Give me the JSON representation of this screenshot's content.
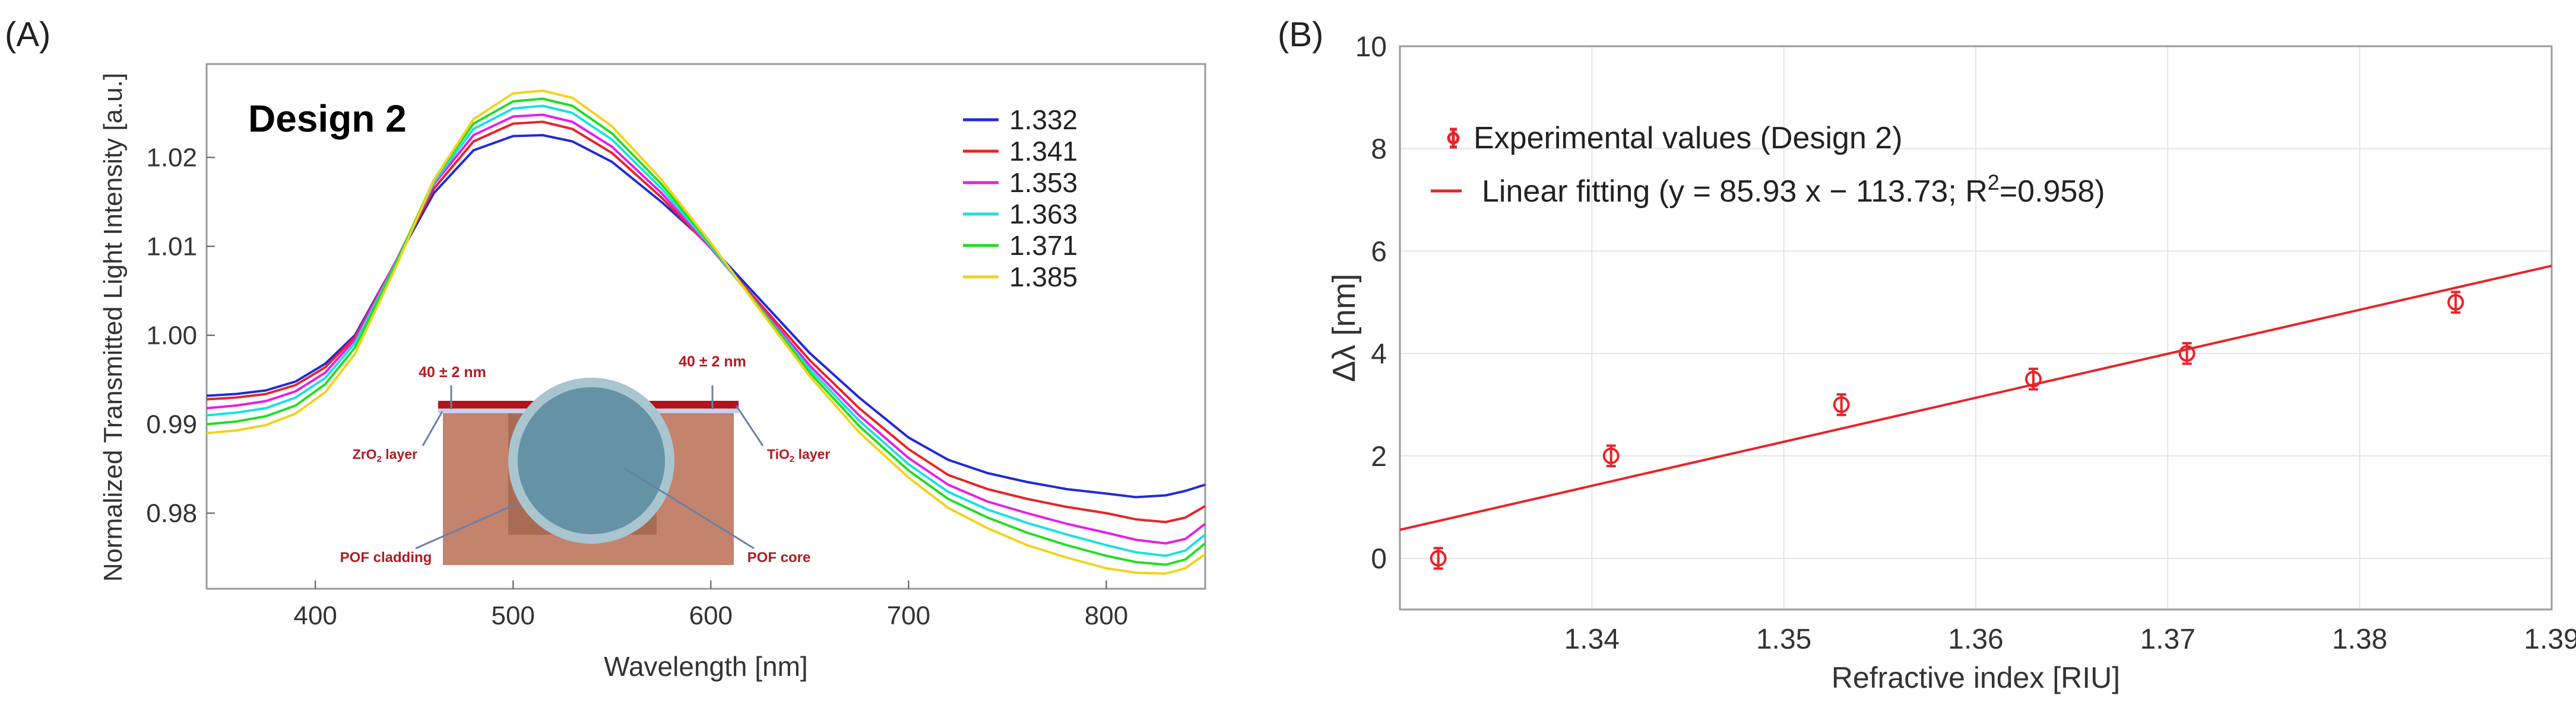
{
  "chart_data": [
    {
      "panel_label": "(A)",
      "type": "line",
      "title": "Design 2",
      "xlabel": "Wavelength [nm]",
      "ylabel": "Normalized Transmitted Light Intensity [a.u.]",
      "xlim": [
        345,
        850
      ],
      "ylim": [
        0.9715,
        1.0305
      ],
      "xticks": [
        400,
        500,
        600,
        700,
        800
      ],
      "yticks": [
        0.98,
        0.99,
        1.0,
        1.01,
        1.02
      ],
      "ytick_labels": [
        "0.98",
        "0.99",
        "1.00",
        "1.01",
        "1.02"
      ],
      "legend_position": "top-right",
      "series": [
        {
          "name": "1.332",
          "color": "#1f2bd6",
          "x": [
            345,
            360,
            375,
            390,
            405,
            420,
            440,
            460,
            480,
            500,
            515,
            530,
            550,
            575,
            600,
            625,
            650,
            675,
            700,
            720,
            740,
            760,
            780,
            800,
            815,
            830,
            840,
            850
          ],
          "y": [
            0.9932,
            0.9934,
            0.9938,
            0.9948,
            0.9968,
            1.0,
            1.008,
            1.016,
            1.0208,
            1.0224,
            1.0225,
            1.0218,
            1.0195,
            1.015,
            1.01,
            1.004,
            0.998,
            0.993,
            0.9885,
            0.986,
            0.9845,
            0.9835,
            0.9827,
            0.9822,
            0.9818,
            0.982,
            0.9825,
            0.9832
          ]
        },
        {
          "name": "1.341",
          "color": "#e8242a",
          "x": [
            345,
            360,
            375,
            390,
            405,
            420,
            440,
            460,
            480,
            500,
            515,
            530,
            550,
            575,
            600,
            625,
            650,
            675,
            700,
            720,
            740,
            760,
            780,
            800,
            815,
            830,
            840,
            850
          ],
          "y": [
            0.9928,
            0.993,
            0.9934,
            0.9944,
            0.9964,
            0.9998,
            1.008,
            1.0165,
            1.0218,
            1.0238,
            1.024,
            1.0232,
            1.0205,
            1.0155,
            1.0098,
            1.0035,
            0.9972,
            0.9918,
            0.9872,
            0.9843,
            0.9827,
            0.9816,
            0.9807,
            0.98,
            0.9793,
            0.979,
            0.9795,
            0.9808
          ]
        },
        {
          "name": "1.353",
          "color": "#e81ee8",
          "x": [
            345,
            360,
            375,
            390,
            405,
            420,
            440,
            460,
            480,
            500,
            515,
            530,
            550,
            575,
            600,
            625,
            650,
            675,
            700,
            720,
            740,
            760,
            780,
            800,
            815,
            830,
            840,
            850
          ],
          "y": [
            0.9918,
            0.9921,
            0.9926,
            0.9937,
            0.9958,
            0.9995,
            1.008,
            1.017,
            1.0225,
            1.0246,
            1.0248,
            1.024,
            1.0212,
            1.016,
            1.0098,
            1.0032,
            0.9966,
            0.991,
            0.9862,
            0.9832,
            0.9813,
            0.98,
            0.9788,
            0.9778,
            0.977,
            0.9766,
            0.9771,
            0.9788
          ]
        },
        {
          "name": "1.363",
          "color": "#19e0e0",
          "x": [
            345,
            360,
            375,
            390,
            405,
            420,
            440,
            460,
            480,
            500,
            515,
            530,
            550,
            575,
            600,
            625,
            650,
            675,
            700,
            720,
            740,
            760,
            780,
            800,
            815,
            830,
            840,
            850
          ],
          "y": [
            0.991,
            0.9913,
            0.9918,
            0.993,
            0.9952,
            0.9991,
            1.0078,
            1.0172,
            1.0232,
            1.0255,
            1.0258,
            1.025,
            1.022,
            1.0165,
            1.01,
            1.003,
            0.9962,
            0.9904,
            0.9855,
            0.9824,
            0.9804,
            0.9789,
            0.9776,
            0.9764,
            0.9756,
            0.9752,
            0.9758,
            0.9776
          ]
        },
        {
          "name": "1.371",
          "color": "#22dd22",
          "x": [
            345,
            360,
            375,
            390,
            405,
            420,
            440,
            460,
            480,
            500,
            515,
            530,
            550,
            575,
            600,
            625,
            650,
            675,
            700,
            720,
            740,
            760,
            780,
            800,
            815,
            830,
            840,
            850
          ],
          "y": [
            0.99,
            0.9903,
            0.9909,
            0.9921,
            0.9945,
            0.9986,
            1.0077,
            1.0175,
            1.0238,
            1.0263,
            1.0266,
            1.0258,
            1.0227,
            1.017,
            1.0102,
            1.003,
            0.9958,
            0.9898,
            0.9848,
            0.9816,
            0.9795,
            0.9778,
            0.9764,
            0.9752,
            0.9745,
            0.9742,
            0.9748,
            0.9766
          ]
        },
        {
          "name": "1.385",
          "color": "#f2d21c",
          "x": [
            345,
            360,
            375,
            390,
            405,
            420,
            440,
            460,
            480,
            500,
            515,
            530,
            550,
            575,
            600,
            625,
            650,
            675,
            700,
            720,
            740,
            760,
            780,
            800,
            815,
            830,
            840,
            850
          ],
          "y": [
            0.989,
            0.9893,
            0.9899,
            0.9912,
            0.9936,
            0.9979,
            1.0073,
            1.0175,
            1.0243,
            1.0272,
            1.0275,
            1.0267,
            1.0235,
            1.0175,
            1.0104,
            1.0028,
            0.9954,
            0.9891,
            0.984,
            0.9806,
            0.9783,
            0.9764,
            0.975,
            0.9738,
            0.9733,
            0.9732,
            0.9738,
            0.9754
          ]
        }
      ],
      "inset": {
        "top_layer_left_label": "40 ± 2 nm",
        "top_layer_right_label": "40 ± 2 nm",
        "zro2_label": "ZrO",
        "zro2_suffix": " layer",
        "tio2_label": "TiO",
        "tio2_suffix": " layer",
        "subscript": "2",
        "cladding_label": "POF cladding",
        "core_label": "POF core"
      }
    },
    {
      "panel_label": "(B)",
      "type": "scatter",
      "xlabel": "Refractive index [RIU]",
      "ylabel": "Δλ [nm]",
      "xlim": [
        1.33,
        1.39
      ],
      "ylim": [
        -1,
        10
      ],
      "xticks": [
        1.34,
        1.35,
        1.36,
        1.37,
        1.38,
        1.39
      ],
      "xtick_labels": [
        "1.34",
        "1.35",
        "1.36",
        "1.37",
        "1.38",
        "1.39"
      ],
      "yticks": [
        0,
        2,
        4,
        6,
        8,
        10
      ],
      "ytick_labels": [
        "0",
        "2",
        "4",
        "6",
        "8",
        "10"
      ],
      "grid": true,
      "legend_position": "top-left",
      "marker_color": "#e8242a",
      "points": {
        "name": "Experimental values (Design 2)",
        "x": [
          1.332,
          1.341,
          1.353,
          1.363,
          1.371,
          1.385
        ],
        "y": [
          0,
          2,
          3,
          3.5,
          4,
          5
        ],
        "err": [
          0.2,
          0.2,
          0.2,
          0.2,
          0.2,
          0.2
        ]
      },
      "fit": {
        "name_prefix": "Linear fitting (y = 85.93 x − 113.73; R",
        "name_sup": "2",
        "name_suffix": "=0.958)",
        "slope": 85.93,
        "intercept": -113.73,
        "x_range": [
          1.33,
          1.39
        ]
      }
    }
  ]
}
